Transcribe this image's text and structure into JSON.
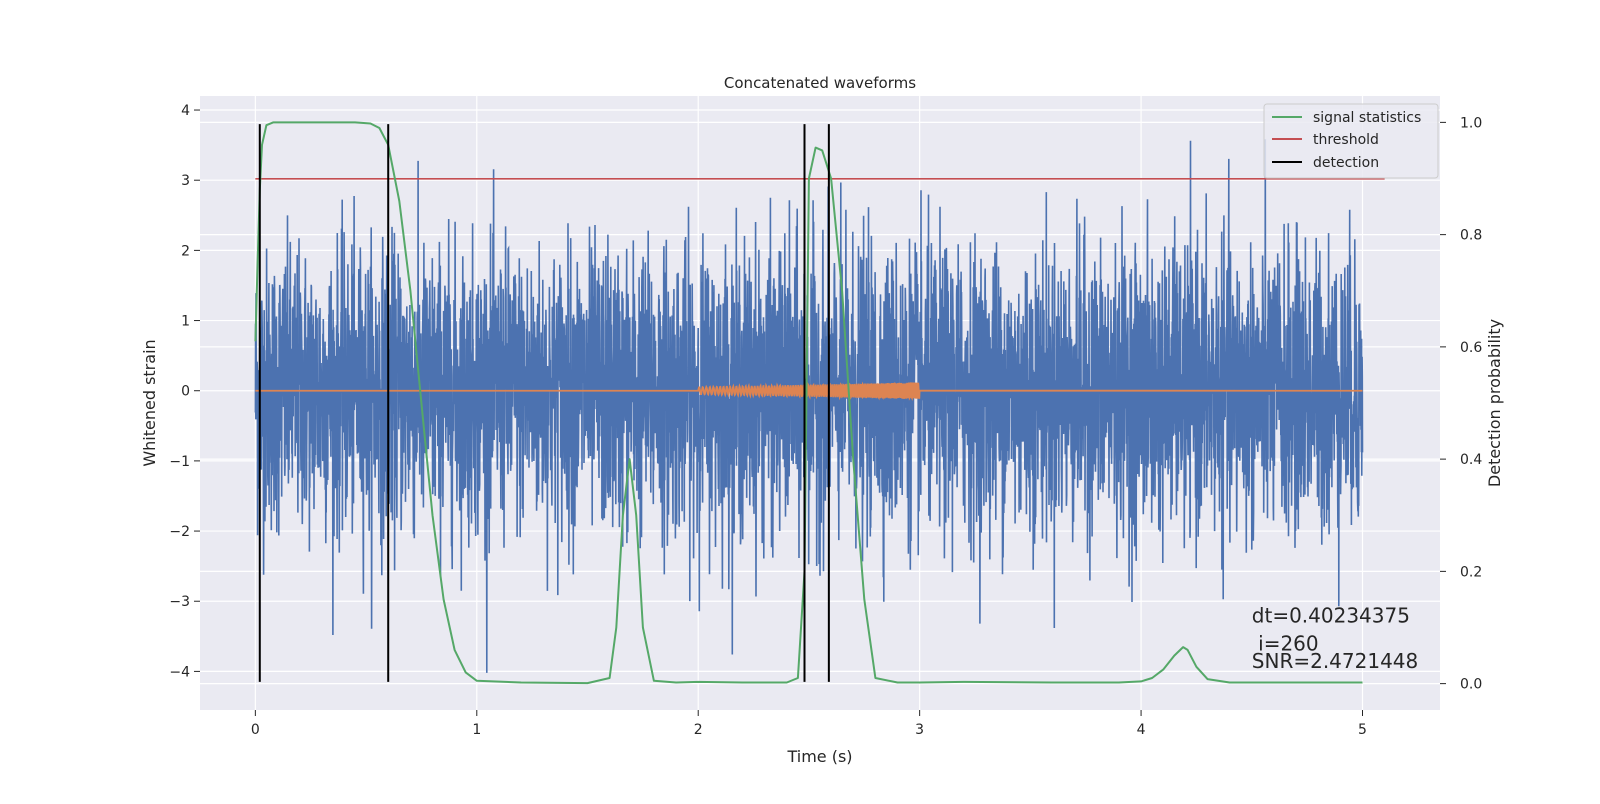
{
  "chart_data": {
    "type": "line",
    "title": "Concatenated waveforms",
    "xlabel": "Time (s)",
    "ylabel": "Whitened strain",
    "ylabel_right": "Detection probability",
    "xlim": [
      -0.25,
      5.35
    ],
    "ylim": [
      -4.55,
      4.2
    ],
    "ylim_right": [
      -0.047,
      1.047
    ],
    "x_ticks": [
      0,
      1,
      2,
      3,
      4,
      5
    ],
    "y_ticks": [
      -4,
      -3,
      -2,
      -1,
      0,
      1,
      2,
      3,
      4
    ],
    "y_ticks_right": [
      0.0,
      0.2,
      0.4,
      0.6,
      0.8,
      1.0
    ],
    "x_tick_labels": [
      "0",
      "1",
      "2",
      "3",
      "4",
      "5"
    ],
    "y_tick_labels": [
      "−4",
      "−3",
      "−2",
      "−1",
      "0",
      "1",
      "2",
      "3",
      "4"
    ],
    "y_tick_labels_right": [
      "0.0",
      "0.2",
      "0.4",
      "0.6",
      "0.8",
      "1.0"
    ],
    "grid": true,
    "legend_position": "top-right",
    "noise": {
      "x_range": [
        0,
        5
      ],
      "approx_amplitude": 1.0,
      "color": "#4c72b0"
    },
    "injection": {
      "x_range": [
        2.0,
        3.0
      ],
      "amplitude_range": [
        0.05,
        0.12
      ],
      "color": "#dd8452"
    },
    "series": [
      {
        "name": "signal statistics",
        "color": "#55a868",
        "axis": "right",
        "x": [
          0.0,
          0.01,
          0.02,
          0.03,
          0.05,
          0.08,
          0.15,
          0.3,
          0.45,
          0.52,
          0.56,
          0.6,
          0.65,
          0.7,
          0.75,
          0.8,
          0.85,
          0.9,
          0.95,
          1.0,
          1.2,
          1.5,
          1.6,
          1.63,
          1.66,
          1.69,
          1.72,
          1.75,
          1.8,
          1.9,
          2.0,
          2.2,
          2.4,
          2.45,
          2.48,
          2.5,
          2.53,
          2.56,
          2.6,
          2.65,
          2.7,
          2.75,
          2.8,
          2.9,
          3.0,
          3.2,
          3.6,
          3.9,
          4.0,
          4.05,
          4.1,
          4.15,
          4.19,
          4.21,
          4.25,
          4.3,
          4.4,
          4.6,
          5.0
        ],
        "y": [
          0.61,
          0.75,
          0.88,
          0.96,
          0.995,
          1.0,
          1.0,
          1.0,
          1.0,
          0.998,
          0.99,
          0.96,
          0.86,
          0.7,
          0.5,
          0.3,
          0.15,
          0.06,
          0.02,
          0.005,
          0.002,
          0.001,
          0.01,
          0.1,
          0.3,
          0.4,
          0.3,
          0.1,
          0.005,
          0.002,
          0.003,
          0.002,
          0.002,
          0.01,
          0.2,
          0.9,
          0.955,
          0.95,
          0.9,
          0.7,
          0.4,
          0.15,
          0.01,
          0.002,
          0.002,
          0.003,
          0.002,
          0.002,
          0.004,
          0.01,
          0.025,
          0.05,
          0.065,
          0.06,
          0.03,
          0.008,
          0.002,
          0.002,
          0.002
        ]
      },
      {
        "name": "threshold",
        "color": "#c44e52",
        "axis": "left",
        "x": [
          0.0,
          5.1
        ],
        "y": [
          3.02,
          3.02
        ]
      },
      {
        "name": "detection",
        "color": "#000000",
        "axis": "left",
        "vertical_lines_x": [
          0.02,
          0.6,
          2.48,
          2.59
        ],
        "y_span": [
          -4.15,
          3.8
        ]
      }
    ],
    "annotations": [
      {
        "text": "dt=0.40234375\n i=260",
        "x": 4.5,
        "y": -3.3
      },
      {
        "text": "SNR=2.4721448",
        "x": 4.5,
        "y": -3.95
      }
    ]
  }
}
